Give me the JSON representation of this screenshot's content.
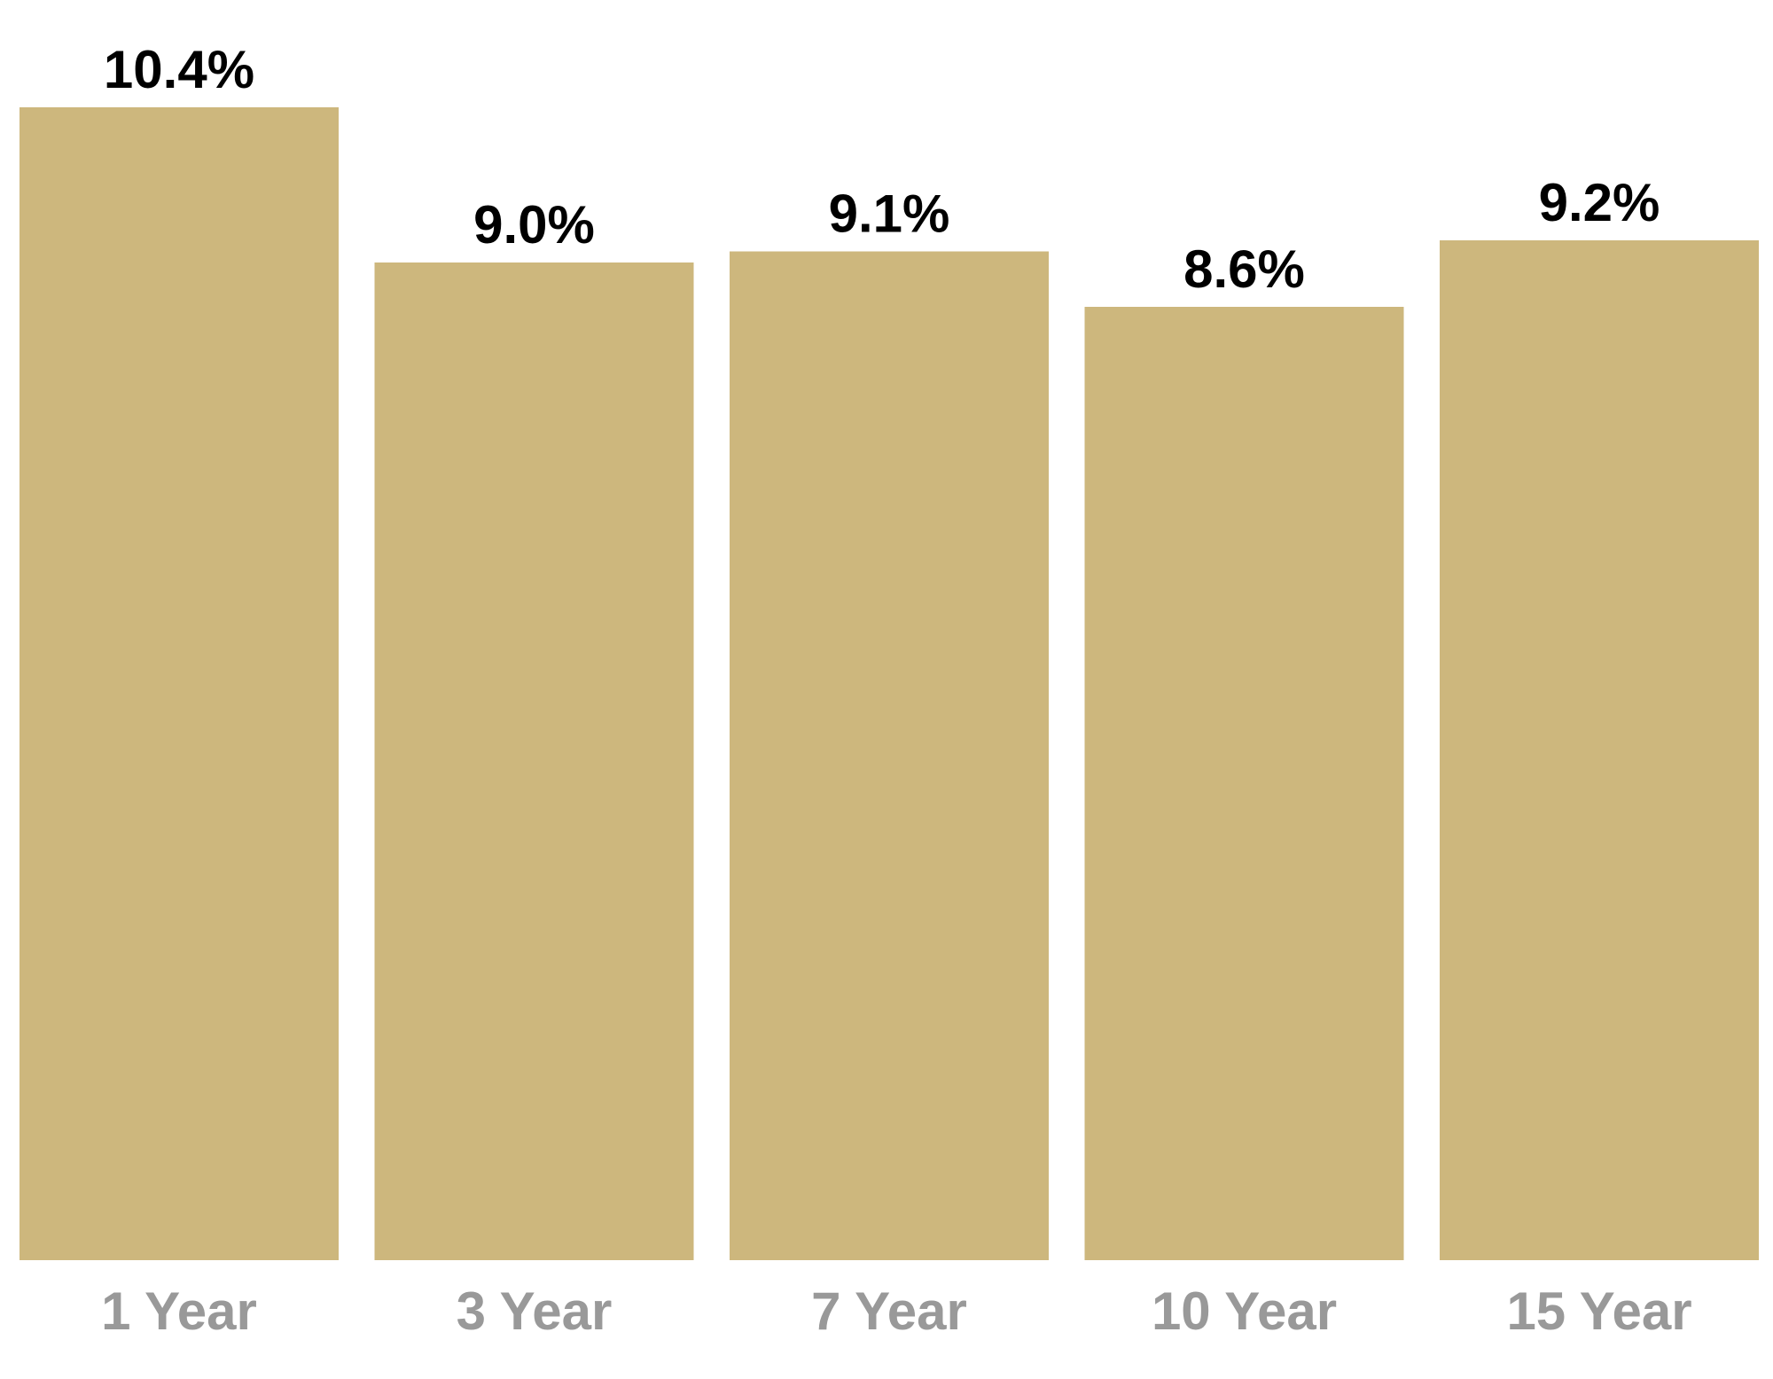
{
  "chart_data": {
    "type": "bar",
    "categories": [
      "1 Year",
      "3 Year",
      "7 Year",
      "10 Year",
      "15 Year"
    ],
    "values": [
      10.4,
      9.0,
      9.1,
      8.6,
      9.2
    ],
    "value_labels": [
      "10.4%",
      "9.0%",
      "9.1%",
      "8.6%",
      "9.2%"
    ],
    "color": "#cdb77d"
  }
}
